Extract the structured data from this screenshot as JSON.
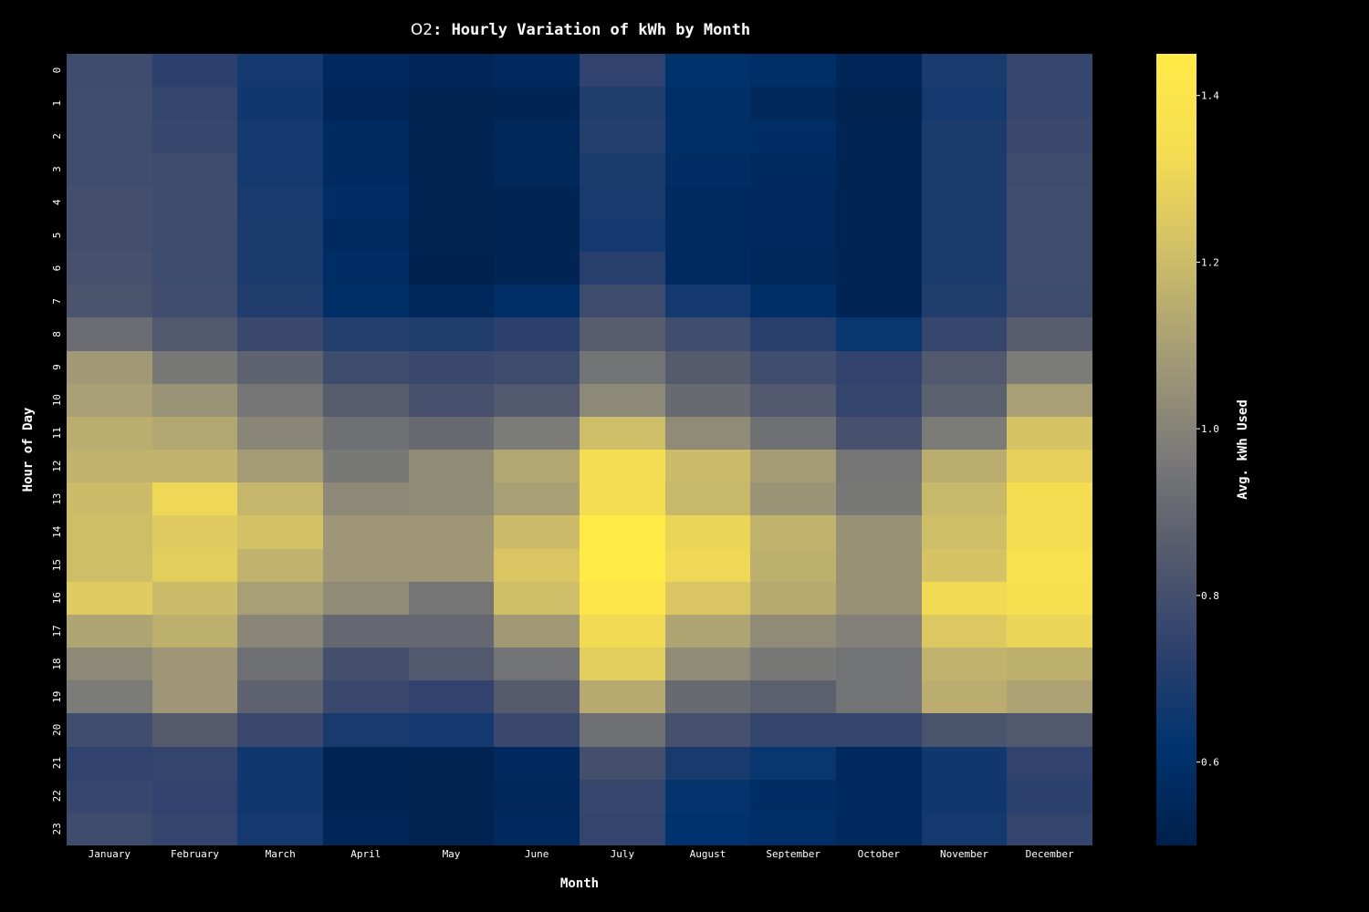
{
  "chart_data": {
    "type": "heatmap",
    "title_prefix": "O2",
    "title_main": ": Hourly Variation of kWh by Month",
    "xlabel": "Month",
    "ylabel": "Hour of Day",
    "colorbar_label": "Avg. kWh Used",
    "colormap": "cividis",
    "vmin": 0.5,
    "vmax": 1.45,
    "colorbar_ticks": [
      0.6,
      0.8,
      1.0,
      1.2,
      1.4
    ],
    "colorbar_tick_labels": [
      "0.6",
      "0.8",
      "1.0",
      "1.2",
      "1.4"
    ],
    "months": [
      "January",
      "February",
      "March",
      "April",
      "May",
      "June",
      "July",
      "August",
      "September",
      "October",
      "November",
      "December"
    ],
    "hours": [
      "0",
      "1",
      "2",
      "3",
      "4",
      "5",
      "6",
      "7",
      "8",
      "9",
      "10",
      "11",
      "12",
      "13",
      "14",
      "15",
      "16",
      "17",
      "18",
      "19",
      "20",
      "21",
      "22",
      "23"
    ],
    "values": [
      [
        0.78,
        0.73,
        0.67,
        0.56,
        0.54,
        0.56,
        0.74,
        0.61,
        0.59,
        0.54,
        0.68,
        0.76
      ],
      [
        0.79,
        0.75,
        0.66,
        0.54,
        0.52,
        0.53,
        0.7,
        0.59,
        0.55,
        0.52,
        0.67,
        0.76
      ],
      [
        0.79,
        0.76,
        0.67,
        0.57,
        0.52,
        0.55,
        0.71,
        0.59,
        0.58,
        0.53,
        0.69,
        0.77
      ],
      [
        0.79,
        0.78,
        0.67,
        0.57,
        0.52,
        0.55,
        0.69,
        0.58,
        0.57,
        0.53,
        0.69,
        0.78
      ],
      [
        0.8,
        0.78,
        0.68,
        0.58,
        0.52,
        0.53,
        0.68,
        0.57,
        0.56,
        0.53,
        0.69,
        0.79
      ],
      [
        0.8,
        0.78,
        0.69,
        0.57,
        0.52,
        0.53,
        0.67,
        0.57,
        0.56,
        0.53,
        0.69,
        0.79
      ],
      [
        0.81,
        0.78,
        0.69,
        0.58,
        0.51,
        0.53,
        0.72,
        0.57,
        0.55,
        0.53,
        0.69,
        0.79
      ],
      [
        0.82,
        0.79,
        0.7,
        0.59,
        0.55,
        0.59,
        0.78,
        0.67,
        0.59,
        0.53,
        0.7,
        0.78
      ],
      [
        0.92,
        0.84,
        0.77,
        0.71,
        0.7,
        0.73,
        0.86,
        0.79,
        0.72,
        0.64,
        0.76,
        0.86
      ],
      [
        1.08,
        0.96,
        0.88,
        0.78,
        0.77,
        0.78,
        0.94,
        0.85,
        0.79,
        0.74,
        0.84,
        0.97
      ],
      [
        1.1,
        1.06,
        0.95,
        0.86,
        0.81,
        0.84,
        1.02,
        0.91,
        0.84,
        0.75,
        0.87,
        1.1
      ],
      [
        1.15,
        1.13,
        1.01,
        0.93,
        0.91,
        0.97,
        1.21,
        1.03,
        0.93,
        0.81,
        0.97,
        1.23
      ],
      [
        1.17,
        1.17,
        1.09,
        0.96,
        1.03,
        1.13,
        1.33,
        1.2,
        1.09,
        0.95,
        1.15,
        1.28
      ],
      [
        1.2,
        1.31,
        1.18,
        1.02,
        1.03,
        1.1,
        1.33,
        1.19,
        1.06,
        0.96,
        1.19,
        1.33
      ],
      [
        1.21,
        1.26,
        1.22,
        1.07,
        1.07,
        1.2,
        1.45,
        1.3,
        1.17,
        1.05,
        1.21,
        1.33
      ],
      [
        1.21,
        1.27,
        1.17,
        1.07,
        1.07,
        1.24,
        1.46,
        1.31,
        1.16,
        1.05,
        1.23,
        1.37
      ],
      [
        1.26,
        1.2,
        1.1,
        1.03,
        0.95,
        1.21,
        1.41,
        1.24,
        1.14,
        1.05,
        1.32,
        1.36
      ],
      [
        1.12,
        1.16,
        1.01,
        0.9,
        0.9,
        1.08,
        1.32,
        1.12,
        1.03,
        0.99,
        1.25,
        1.3
      ],
      [
        1.02,
        1.07,
        0.93,
        0.8,
        0.84,
        0.94,
        1.27,
        1.03,
        0.96,
        0.94,
        1.17,
        1.16
      ],
      [
        0.97,
        1.07,
        0.88,
        0.77,
        0.74,
        0.85,
        1.14,
        0.91,
        0.87,
        0.94,
        1.15,
        1.11
      ],
      [
        0.79,
        0.85,
        0.77,
        0.68,
        0.67,
        0.77,
        0.93,
        0.81,
        0.75,
        0.75,
        0.82,
        0.84
      ],
      [
        0.74,
        0.75,
        0.66,
        0.53,
        0.52,
        0.56,
        0.8,
        0.68,
        0.64,
        0.56,
        0.66,
        0.74
      ],
      [
        0.76,
        0.74,
        0.66,
        0.53,
        0.52,
        0.55,
        0.76,
        0.63,
        0.58,
        0.56,
        0.66,
        0.73
      ],
      [
        0.78,
        0.75,
        0.67,
        0.54,
        0.52,
        0.56,
        0.75,
        0.62,
        0.59,
        0.56,
        0.67,
        0.75
      ]
    ]
  }
}
